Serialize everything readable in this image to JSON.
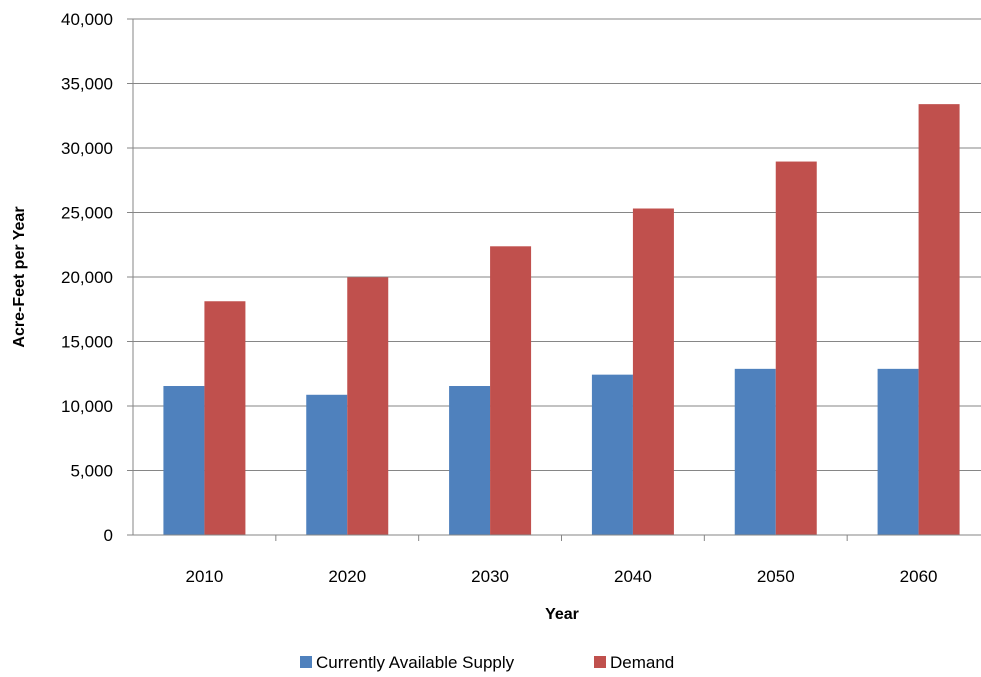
{
  "chart_data": {
    "type": "bar",
    "categories": [
      "2010",
      "2020",
      "2030",
      "2040",
      "2050",
      "2060"
    ],
    "series": [
      {
        "name": "Currently Available Supply",
        "color": "#4F81BD",
        "values": [
          11550,
          10870,
          11550,
          12430,
          12880,
          12880
        ]
      },
      {
        "name": "Demand",
        "color": "#C0504D",
        "values": [
          18120,
          19980,
          22380,
          25310,
          28950,
          33400
        ]
      }
    ],
    "title": "",
    "xlabel": "Year",
    "ylabel": "Acre-Feet per Year",
    "ylim": [
      0,
      40000
    ],
    "yticks": [
      0,
      5000,
      10000,
      15000,
      20000,
      25000,
      30000,
      35000,
      40000
    ],
    "ytick_labels": [
      "0",
      "5,000",
      "10,000",
      "15,000",
      "20,000",
      "25,000",
      "30,000",
      "35,000",
      "40,000"
    ],
    "grid": true,
    "legend_position": "bottom"
  }
}
